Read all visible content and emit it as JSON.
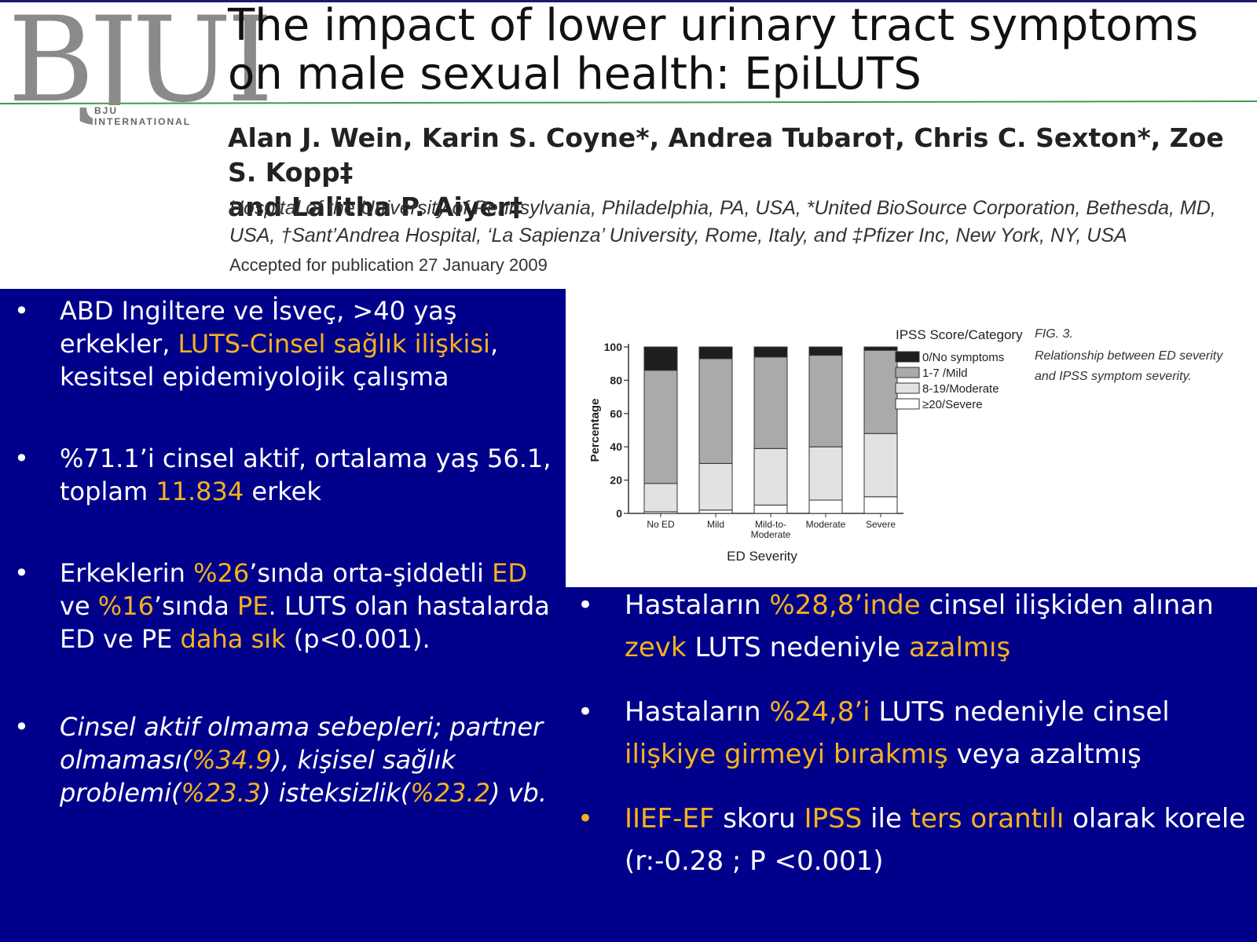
{
  "header": {
    "logo_text": "BJUI",
    "logo_subtitle": "BJU INTERNATIONAL",
    "title": "The impact of lower urinary tract symptoms on male sexual health: EpiLUTS",
    "authors_line1": "Alan J. Wein, Karin S. Coyne*, Andrea Tubaro†, Chris C. Sexton*, Zoe S. Kopp‡",
    "authors_line2": "and Lalitha P. Aiyer‡",
    "affiliation_line1": "Hospital of the University of Pennsylvania, Philadelphia, PA, USA, *United BioSource Corporation, Bethesda, MD,",
    "affiliation_line2": "USA, †Sant’Andrea Hospital, ‘La Sapienza’ University, Rome, Italy, and ‡Pfizer Inc, New York, NY, USA",
    "accepted": "Accepted for publication 27 January 2009"
  },
  "colors": {
    "background": "#00008b",
    "highlight": "#f5b21e",
    "text": "#ffffff"
  },
  "bullet_symbol": "•",
  "left_bullets": {
    "b1": {
      "t1": "ABD Ingiltere ve İsveç, >40 yaş erkekler, ",
      "t2": "LUTS-Cinsel sağlık ilişkisi",
      "t3": ", kesitsel epidemiyolojik çalışma"
    },
    "b2": {
      "t1": "%71.1’i cinsel aktif, ortalama yaş 56.1, toplam ",
      "t2": "11.834",
      "t3": " erkek"
    },
    "b3": {
      "t1": "Erkeklerin ",
      "t2": "%26",
      "t3": "’sında orta-şiddetli ",
      "t4": "ED",
      "t5": " ve ",
      "t6": "%16",
      "t7": "’sında ",
      "t8": "PE",
      "t9": ". LUTS olan hastalarda ED ve PE ",
      "t10": "daha sık",
      "t11": " (p<0.001)."
    },
    "b4": {
      "t1": "Cinsel aktif olmama sebepleri; partner olmaması(",
      "t2": "%34.9",
      "t3": "), kişisel sağlık problemi(",
      "t4": "%23.3",
      "t5": ") isteksizlik(",
      "t6": "%23.2",
      "t7": ") vb."
    }
  },
  "right_bullets": {
    "b1": {
      "t1": "Hastaların ",
      "t2": "%28,8’inde",
      "t3": " cinsel ilişkiden alınan ",
      "t4": "zevk",
      "t5": " LUTS  nedeniyle ",
      "t6": "azalmış"
    },
    "b2": {
      "t1": "Hastaların ",
      "t2": "%24,8’i",
      "t3": " LUTS  nedeniyle cinsel ",
      "t4": "ilişkiye girmeyi bırakmış",
      "t5": " veya azaltmış"
    },
    "b3": {
      "t1": "IIEF-EF",
      "t2": " skoru ",
      "t3": "IPSS",
      "t4": " ile ",
      "t5": "ters orantılı",
      "t6": " olarak korele (r:-0.28 ; P <0.001)"
    }
  },
  "figure": {
    "caption_label": "FIG. 3.",
    "caption_text": "Relationship between ED severity and IPSS symptom severity."
  },
  "chart_data": {
    "type": "bar",
    "stacked": true,
    "xlabel": "ED Severity",
    "ylabel": "Percentage",
    "ylim": [
      0,
      100
    ],
    "yticks": [
      0,
      20,
      40,
      60,
      80,
      100
    ],
    "categories": [
      "No ED",
      "Mild",
      "Mild-to-Moderate",
      "Moderate",
      "Severe"
    ],
    "category_label_lines": [
      [
        "No ED"
      ],
      [
        "Mild"
      ],
      [
        "Mild-to-",
        "Moderate"
      ],
      [
        "Moderate"
      ],
      [
        "Severe"
      ]
    ],
    "legend_title": "IPSS Score/Category",
    "legend_position": "right",
    "grid": false,
    "series": [
      {
        "name": "≥20/Severe",
        "color": "#ffffff",
        "values": [
          1,
          2,
          5,
          8,
          10
        ]
      },
      {
        "name": "8-19/Moderate",
        "color": "#e2e2e2",
        "values": [
          17,
          28,
          34,
          32,
          38
        ]
      },
      {
        "name": "1-7 /Mild",
        "color": "#aaaaaa",
        "values": [
          68,
          63,
          55,
          55,
          50
        ]
      },
      {
        "name": "0/No symptoms",
        "color": "#1e1e1e",
        "values": [
          14,
          7,
          6,
          5,
          2
        ]
      }
    ]
  }
}
